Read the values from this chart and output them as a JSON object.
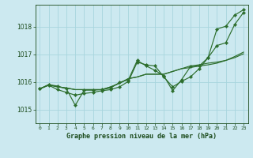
{
  "title": "Graphe pression niveau de la mer (hPa)",
  "bg_color": "#cce9f0",
  "grid_color": "#a8d5de",
  "line_color": "#2d6e2d",
  "text_color": "#1a4a1a",
  "xlim": [
    -0.5,
    23.5
  ],
  "ylim": [
    1014.5,
    1018.8
  ],
  "yticks": [
    1015,
    1016,
    1017,
    1018
  ],
  "xticks": [
    0,
    1,
    2,
    3,
    4,
    5,
    6,
    7,
    8,
    9,
    10,
    11,
    12,
    13,
    14,
    15,
    16,
    17,
    18,
    19,
    20,
    21,
    22,
    23
  ],
  "series": [
    {
      "y": [
        1015.75,
        1015.9,
        1015.85,
        1015.75,
        1015.15,
        1015.7,
        1015.7,
        1015.72,
        1015.78,
        1015.98,
        1016.08,
        1016.78,
        1016.58,
        1016.42,
        1016.22,
        1015.68,
        1016.08,
        1016.55,
        1016.58,
        1016.88,
        1017.92,
        1018.02,
        1018.42,
        1018.62
      ],
      "markers": true
    },
    {
      "y": [
        1015.75,
        1015.9,
        1015.82,
        1015.78,
        1015.72,
        1015.72,
        1015.72,
        1015.72,
        1015.82,
        1015.95,
        1016.12,
        1016.18,
        1016.28,
        1016.28,
        1016.28,
        1016.38,
        1016.48,
        1016.58,
        1016.62,
        1016.68,
        1016.72,
        1016.78,
        1016.92,
        1017.08
      ],
      "markers": false
    },
    {
      "y": [
        1015.75,
        1015.88,
        1015.82,
        1015.78,
        1015.72,
        1015.72,
        1015.72,
        1015.72,
        1015.82,
        1015.95,
        1016.12,
        1016.18,
        1016.28,
        1016.28,
        1016.28,
        1016.38,
        1016.48,
        1016.52,
        1016.58,
        1016.62,
        1016.68,
        1016.78,
        1016.88,
        1017.02
      ],
      "markers": false
    },
    {
      "y": [
        1015.75,
        1015.88,
        1015.72,
        1015.62,
        1015.52,
        1015.58,
        1015.62,
        1015.68,
        1015.72,
        1015.82,
        1016.02,
        1016.72,
        1016.62,
        1016.58,
        1016.18,
        1015.82,
        1016.02,
        1016.18,
        1016.48,
        1016.88,
        1017.32,
        1017.42,
        1018.08,
        1018.52
      ],
      "markers": true
    }
  ]
}
